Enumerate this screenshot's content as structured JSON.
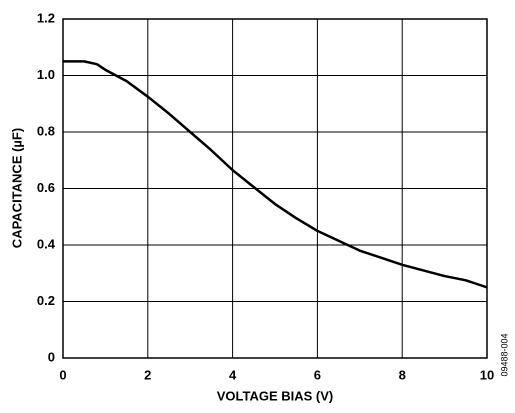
{
  "chart_data": {
    "type": "line",
    "x_label": "VOLTAGE BIAS (V)",
    "y_label": "CAPACITANCE (µF)",
    "figure_id": "09488-004",
    "x": [
      0,
      0.5,
      0.8,
      1,
      1.5,
      2,
      2.5,
      3,
      3.5,
      4,
      4.5,
      5,
      5.5,
      6,
      6.5,
      7,
      7.5,
      8,
      8.5,
      9,
      9.5,
      10
    ],
    "series": [
      {
        "color": "#000000",
        "values": [
          1.05,
          1.05,
          1.04,
          1.02,
          0.98,
          0.925,
          0.865,
          0.8,
          0.735,
          0.665,
          0.605,
          0.545,
          0.495,
          0.45,
          0.415,
          0.38,
          0.355,
          0.33,
          0.31,
          0.29,
          0.275,
          0.25
        ]
      }
    ],
    "xlim": [
      0,
      10
    ],
    "xticks": [
      0,
      2,
      4,
      6,
      8,
      10
    ],
    "ylim": [
      0,
      1.2
    ],
    "yticks": [
      0,
      0.2,
      0.4,
      0.6,
      0.8,
      {
        "value": 1,
        "label": "1.0"
      },
      1.2
    ],
    "grid": true
  }
}
